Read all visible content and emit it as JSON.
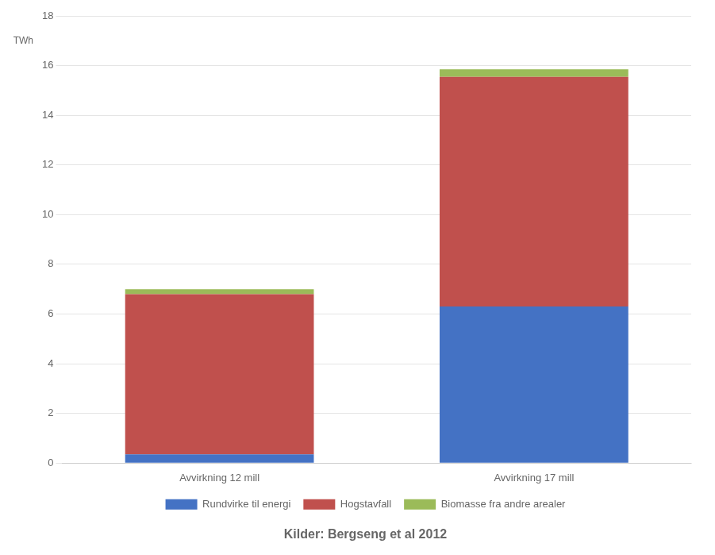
{
  "chart_data": {
    "type": "bar",
    "stacked": true,
    "categories": [
      "Avvirkning 12 mill",
      "Avvirkning 17 mill"
    ],
    "series": [
      {
        "name": "Rundvirke til energi",
        "values": [
          0.35,
          6.3
        ],
        "color": "#4472C4"
      },
      {
        "name": "Hogstavfall",
        "values": [
          6.45,
          9.25
        ],
        "color": "#C0504D"
      },
      {
        "name": "Biomasse fra andre arealer",
        "values": [
          0.2,
          0.3
        ],
        "color": "#9BBB59"
      }
    ],
    "ylim": [
      0,
      18
    ],
    "yticks": [
      0,
      2,
      4,
      6,
      8,
      10,
      12,
      14,
      16,
      18
    ],
    "ylabel": "TWh",
    "footer": "Kilder: Bergseng et al 2012",
    "grid": true,
    "legend": "bottom"
  }
}
